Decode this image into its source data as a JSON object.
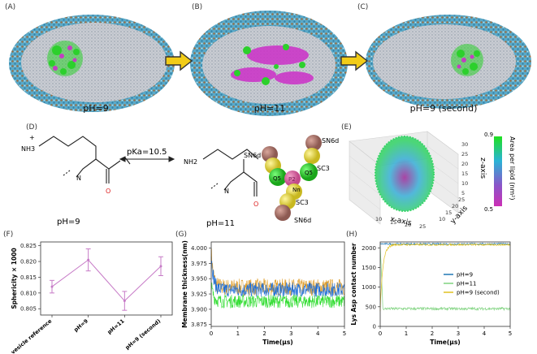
{
  "panels": {
    "A": {
      "label": "(A)",
      "caption": "pH=9"
    },
    "B": {
      "label": "(B)",
      "caption": "pH=11"
    },
    "C": {
      "label": "(C)",
      "caption": "pH=9 (second)"
    },
    "D": {
      "label": "(D)",
      "pka": "pKa=10.5",
      "left_ph": "pH=9",
      "right_ph": "pH=11",
      "nh3": "NH3",
      "nh2": "NH2",
      "plus": "+",
      "n_left": "N",
      "n_right": "N",
      "o_left": "O",
      "o_right": "O",
      "beads": [
        "SN6d",
        "SC3",
        "Q5",
        "P2",
        "Q5",
        "Nn",
        "SC3",
        "SN6d"
      ]
    },
    "E": {
      "label": "(E)",
      "colorbar_title": "Area per lipid (nm²)",
      "colorbar_max": "0.9",
      "colorbar_min": "0.5",
      "colorbar_colors": [
        "#1fe01f",
        "#2ab3d6",
        "#8a55c9",
        "#cc2fb5"
      ],
      "xlabel": "x-axis",
      "ylabel": "y-axis",
      "zlabel": "z-axis",
      "xticks": [
        "10",
        "15",
        "20",
        "25"
      ],
      "yticks": [
        "10",
        "15",
        "20",
        "25"
      ],
      "zticks": [
        "5",
        "10",
        "15",
        "20",
        "25",
        "30"
      ]
    },
    "F": {
      "label": "(F)"
    },
    "G": {
      "label": "(G)"
    },
    "H": {
      "label": "(H)"
    }
  },
  "chart_data": [
    {
      "id": "F",
      "type": "line",
      "ylabel": "Sphericity × 1000",
      "categories": [
        "vesicle reference",
        "pH=9",
        "pH=11",
        "pH=9 (second)"
      ],
      "values": [
        0.812,
        0.8205,
        0.8075,
        0.8185
      ],
      "errors": [
        0.002,
        0.0035,
        0.003,
        0.003
      ],
      "ylim": [
        0.803,
        0.8262
      ],
      "yticks": [
        "0.805",
        "0.810",
        "0.815",
        "0.820",
        "0.825"
      ],
      "color": "#c77bc7"
    },
    {
      "id": "G",
      "type": "line",
      "xlabel": "Time(μs)",
      "ylabel": "Membrane thickness(nm)",
      "xlim": [
        0,
        5
      ],
      "ylim": [
        3.872,
        4.01
      ],
      "xticks": [
        "0",
        "1",
        "2",
        "3",
        "4",
        "5"
      ],
      "yticks": [
        "3.875",
        "3.900",
        "3.925",
        "3.950",
        "3.975",
        "4.000"
      ],
      "series": [
        {
          "color": "#e0a030",
          "mean": 3.936,
          "noise": 0.014,
          "start": 3.995
        },
        {
          "color": "#1f6fd8",
          "mean": 3.932,
          "noise": 0.012,
          "start": 3.99
        },
        {
          "color": "#33dd33",
          "mean": 3.913,
          "noise": 0.011,
          "start": 3.94
        }
      ]
    },
    {
      "id": "H",
      "type": "line",
      "xlabel": "Time(μs)",
      "ylabel": "Lys Asp contact number",
      "xlim": [
        0,
        5
      ],
      "ylim": [
        0,
        2150
      ],
      "xticks": [
        "0",
        "1",
        "2",
        "3",
        "4",
        "5"
      ],
      "yticks": [
        "0",
        "500",
        "1000",
        "1500",
        "2000"
      ],
      "series": [
        {
          "name": "pH=9",
          "color": "#1f77b4",
          "level": 2100
        },
        {
          "name": "pH=11",
          "color": "#7fd37f",
          "level": 450
        },
        {
          "name": "pH=9 (second)",
          "color": "#e0c020",
          "level": 2080
        }
      ]
    }
  ]
}
